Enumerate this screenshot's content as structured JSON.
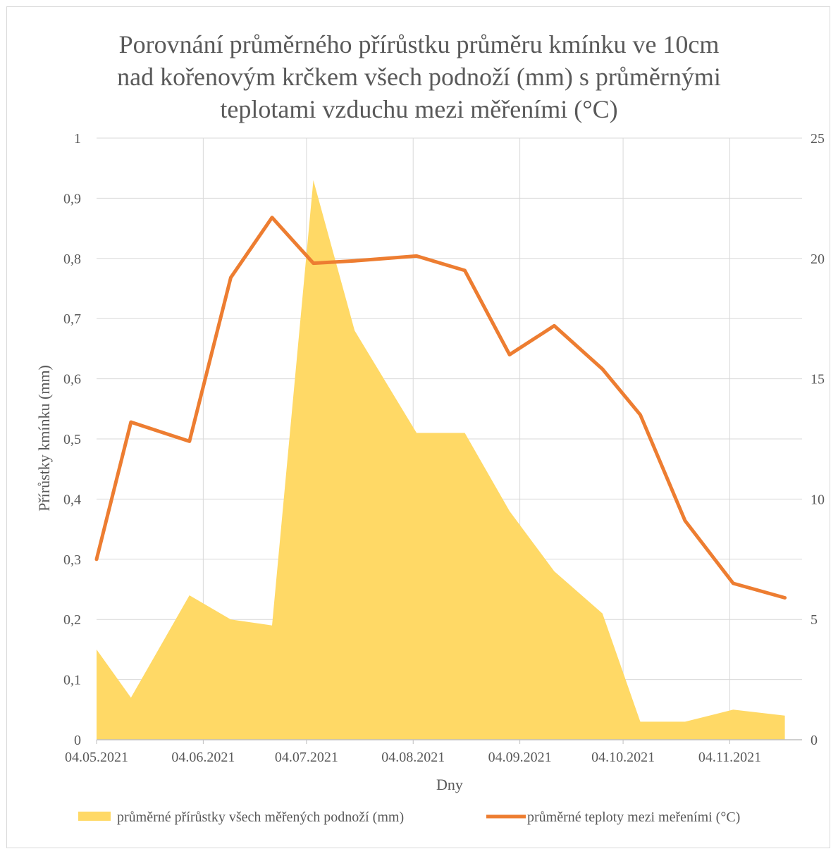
{
  "chart_data": {
    "type": "area+line",
    "title_lines": [
      "Porovnání průměrného přírůstku průměru kmínku ve 10cm",
      "nad kořenovým krčkem všech podnoží (mm) s průměrnými",
      "teplotami vzduchu mezi měřeními (°C)"
    ],
    "xlabel": "Dny",
    "ylabel_left": "Přírůstky kmínku (mm)",
    "ylabel_right": "",
    "x_domain": [
      "2021-05-04",
      "2021-11-25"
    ],
    "x_ticks": [
      {
        "date": "2021-05-04",
        "label": "04.05.2021"
      },
      {
        "date": "2021-06-04",
        "label": "04.06.2021"
      },
      {
        "date": "2021-07-04",
        "label": "04.07.2021"
      },
      {
        "date": "2021-08-04",
        "label": "04.08.2021"
      },
      {
        "date": "2021-09-04",
        "label": "04.09.2021"
      },
      {
        "date": "2021-10-04",
        "label": "04.10.2021"
      },
      {
        "date": "2021-11-04",
        "label": "04.11.2021"
      }
    ],
    "y_left": {
      "min": 0,
      "max": 1,
      "ticks": [
        "0",
        "0,1",
        "0,2",
        "0,3",
        "0,4",
        "0,5",
        "0,6",
        "0,7",
        "0,8",
        "0,9",
        "1"
      ]
    },
    "y_right": {
      "min": 0,
      "max": 25,
      "ticks": [
        "0",
        "5",
        "10",
        "15",
        "20",
        "25"
      ]
    },
    "grid": true,
    "legend_position": "bottom",
    "series": [
      {
        "name": "průměrné přírůstky všech měřených podnoží (mm)",
        "type": "area",
        "axis": "left",
        "color": "#ffd966",
        "points": [
          {
            "x": "2021-05-04",
            "y": 0.15
          },
          {
            "x": "2021-05-14",
            "y": 0.07
          },
          {
            "x": "2021-05-31",
            "y": 0.24
          },
          {
            "x": "2021-06-12",
            "y": 0.2
          },
          {
            "x": "2021-06-24",
            "y": 0.19
          },
          {
            "x": "2021-07-06",
            "y": 0.93
          },
          {
            "x": "2021-07-18",
            "y": 0.68
          },
          {
            "x": "2021-08-05",
            "y": 0.51
          },
          {
            "x": "2021-08-19",
            "y": 0.51
          },
          {
            "x": "2021-09-01",
            "y": 0.38
          },
          {
            "x": "2021-09-14",
            "y": 0.28
          },
          {
            "x": "2021-09-28",
            "y": 0.21
          },
          {
            "x": "2021-10-09",
            "y": 0.03
          },
          {
            "x": "2021-10-22",
            "y": 0.03
          },
          {
            "x": "2021-11-05",
            "y": 0.05
          },
          {
            "x": "2021-11-20",
            "y": 0.04
          }
        ]
      },
      {
        "name": "průměrné teploty mezi meřeními (°C)",
        "type": "line",
        "axis": "right",
        "color": "#ed7d31",
        "points": [
          {
            "x": "2021-05-04",
            "y": 7.5
          },
          {
            "x": "2021-05-14",
            "y": 13.2
          },
          {
            "x": "2021-05-31",
            "y": 12.4
          },
          {
            "x": "2021-06-12",
            "y": 19.2
          },
          {
            "x": "2021-06-24",
            "y": 21.7
          },
          {
            "x": "2021-07-06",
            "y": 19.8
          },
          {
            "x": "2021-07-18",
            "y": 19.9
          },
          {
            "x": "2021-08-05",
            "y": 20.1
          },
          {
            "x": "2021-08-19",
            "y": 19.5
          },
          {
            "x": "2021-09-01",
            "y": 16.0
          },
          {
            "x": "2021-09-14",
            "y": 17.2
          },
          {
            "x": "2021-09-28",
            "y": 15.4
          },
          {
            "x": "2021-10-09",
            "y": 13.5
          },
          {
            "x": "2021-10-22",
            "y": 9.1
          },
          {
            "x": "2021-11-05",
            "y": 6.5
          },
          {
            "x": "2021-11-20",
            "y": 5.9
          }
        ]
      }
    ]
  }
}
